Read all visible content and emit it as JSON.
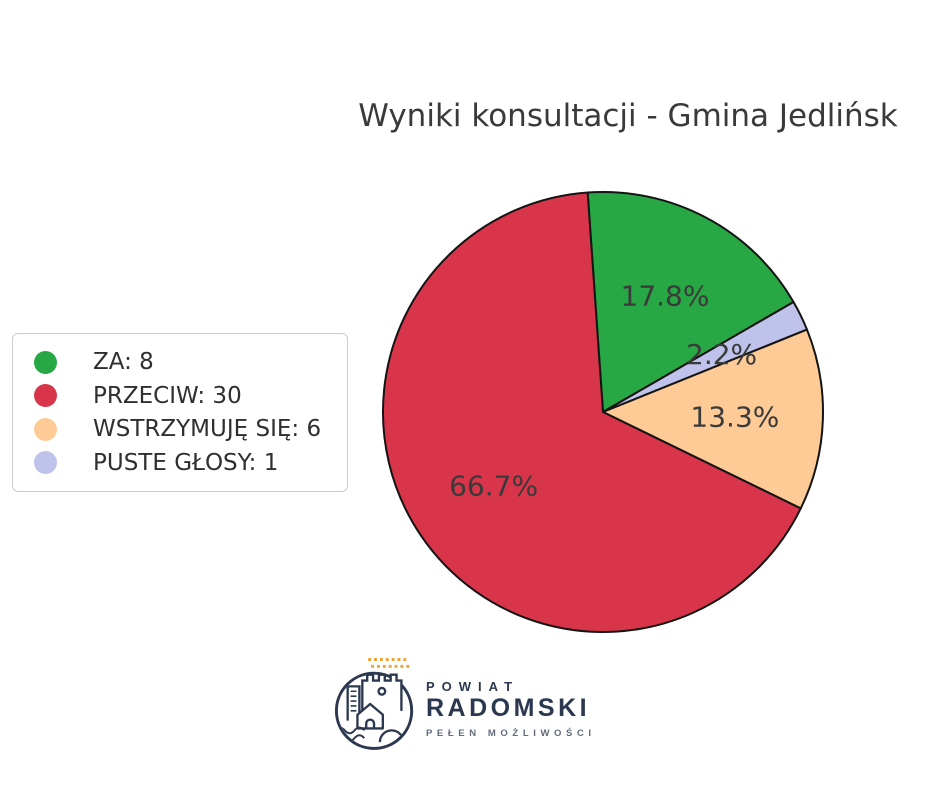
{
  "title": "Wyniki konsultacji - Gmina Jedlińsk",
  "chart_data": {
    "type": "pie",
    "title": "Wyniki konsultacji - Gmina Jedlińsk",
    "labels": [
      "ZA",
      "PRZECIW",
      "WSTRZYMUJĘ SIĘ",
      "PUSTE GŁOSY"
    ],
    "values": [
      8,
      30,
      6,
      1
    ],
    "percent_labels": [
      "17.8%",
      "66.7%",
      "13.3%",
      "2.2%"
    ],
    "colors": [
      "#28a745",
      "#d8354b",
      "#fecb96",
      "#bfc2ea"
    ],
    "draw_order": [
      0,
      3,
      2,
      1
    ],
    "start_angle_deg": 94,
    "direction": "clockwise",
    "label_distance": 0.6,
    "label_color": "#3a3a3a",
    "stroke_color": "#141414",
    "legend_position": "left",
    "legend_labels": [
      "ZA: 8",
      "PRZECIW: 30",
      "WSTRZYMUJĘ SIĘ: 6",
      "PUSTE GŁOSY: 1"
    ]
  },
  "legend": {
    "items": [
      {
        "label": "ZA: 8",
        "color": "#28a745"
      },
      {
        "label": "PRZECIW: 30",
        "color": "#d8354b"
      },
      {
        "label": "WSTRZYMUJĘ SIĘ: 6",
        "color": "#fecb96"
      },
      {
        "label": "PUSTE GŁOSY: 1",
        "color": "#bfc2ea"
      }
    ]
  },
  "logo": {
    "line1": "POWIAT",
    "line2": "RADOMSKI",
    "tagline": "PEŁEN MOŻLIWOŚCI",
    "icon": "powiat-radomski-crest-icon",
    "navy": "#2b3850",
    "orange": "#f0a432"
  }
}
